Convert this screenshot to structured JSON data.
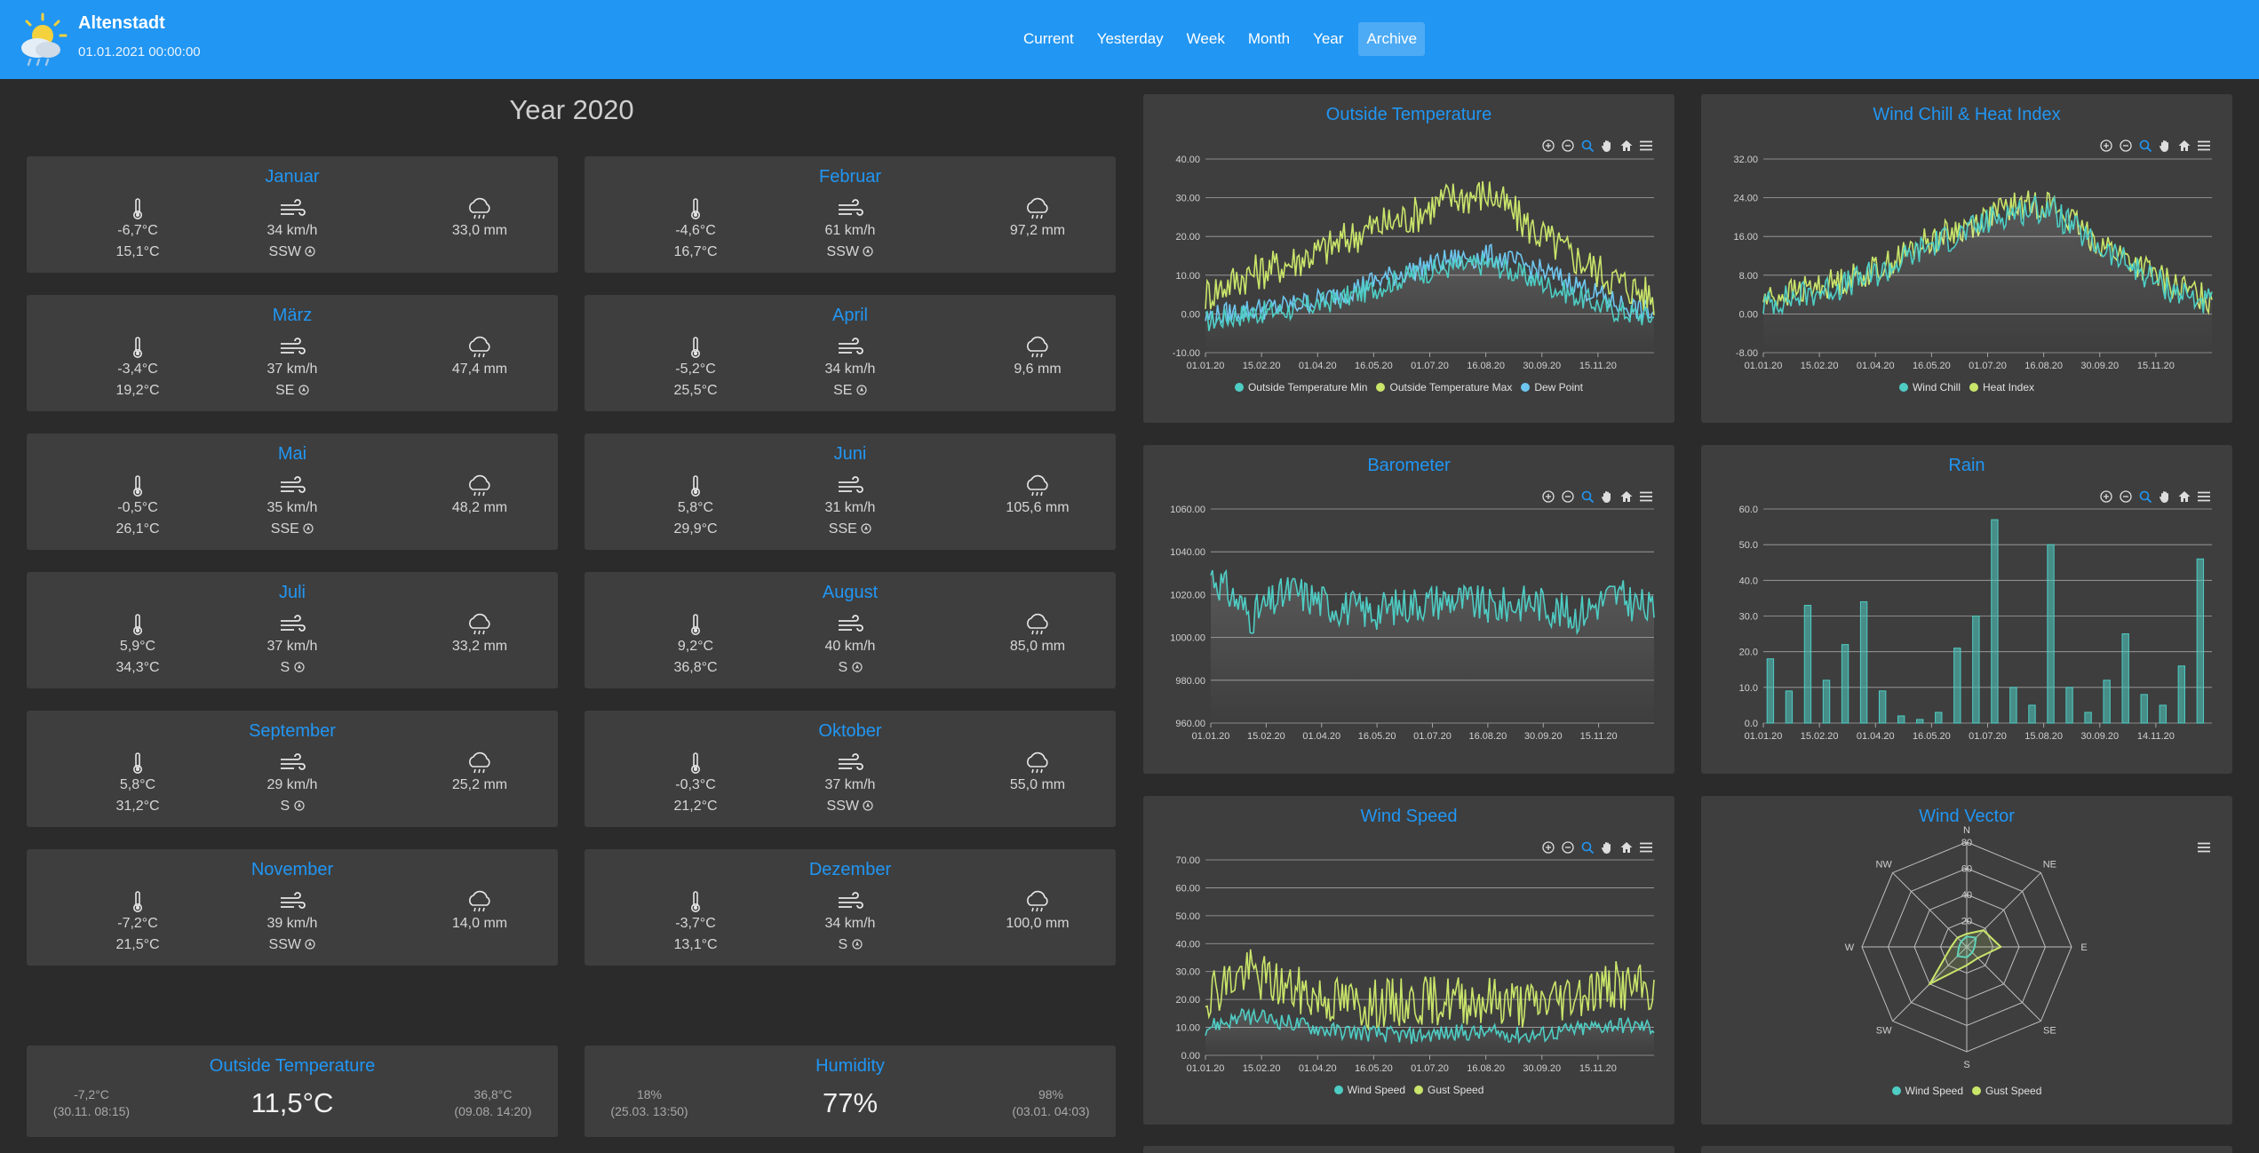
{
  "header": {
    "station": "Altenstadt",
    "datetime": "01.01.2021 00:00:00",
    "nav": [
      "Current",
      "Yesterday",
      "Week",
      "Month",
      "Year",
      "Archive"
    ],
    "active_nav": "Archive"
  },
  "page_title": "Year 2020",
  "months": [
    {
      "name": "Januar",
      "temp_min": "-6,7°C",
      "temp_max": "15,1°C",
      "wind": "34 km/h",
      "wind_dir": "SSW",
      "rain": "33,0 mm"
    },
    {
      "name": "Februar",
      "temp_min": "-4,6°C",
      "temp_max": "16,7°C",
      "wind": "61 km/h",
      "wind_dir": "SSW",
      "rain": "97,2 mm"
    },
    {
      "name": "März",
      "temp_min": "-3,4°C",
      "temp_max": "19,2°C",
      "wind": "37 km/h",
      "wind_dir": "SE",
      "rain": "47,4 mm"
    },
    {
      "name": "April",
      "temp_min": "-5,2°C",
      "temp_max": "25,5°C",
      "wind": "34 km/h",
      "wind_dir": "SE",
      "rain": "9,6 mm"
    },
    {
      "name": "Mai",
      "temp_min": "-0,5°C",
      "temp_max": "26,1°C",
      "wind": "35 km/h",
      "wind_dir": "SSE",
      "rain": "48,2 mm"
    },
    {
      "name": "Juni",
      "temp_min": "5,8°C",
      "temp_max": "29,9°C",
      "wind": "31 km/h",
      "wind_dir": "SSE",
      "rain": "105,6 mm"
    },
    {
      "name": "Juli",
      "temp_min": "5,9°C",
      "temp_max": "34,3°C",
      "wind": "37 km/h",
      "wind_dir": "S",
      "rain": "33,2 mm"
    },
    {
      "name": "August",
      "temp_min": "9,2°C",
      "temp_max": "36,8°C",
      "wind": "40 km/h",
      "wind_dir": "S",
      "rain": "85,0 mm"
    },
    {
      "name": "September",
      "temp_min": "5,8°C",
      "temp_max": "31,2°C",
      "wind": "29 km/h",
      "wind_dir": "S",
      "rain": "25,2 mm"
    },
    {
      "name": "Oktober",
      "temp_min": "-0,3°C",
      "temp_max": "21,2°C",
      "wind": "37 km/h",
      "wind_dir": "SSW",
      "rain": "55,0 mm"
    },
    {
      "name": "November",
      "temp_min": "-7,2°C",
      "temp_max": "21,5°C",
      "wind": "39 km/h",
      "wind_dir": "SSW",
      "rain": "14,0 mm"
    },
    {
      "name": "Dezember",
      "temp_min": "-3,7°C",
      "temp_max": "13,1°C",
      "wind": "34 km/h",
      "wind_dir": "S",
      "rain": "100,0 mm"
    }
  ],
  "stats": {
    "outside_temp": {
      "title": "Outside Temperature",
      "value": "11,5°C",
      "min": "-7,2°C",
      "min_time": "(30.11. 08:15)",
      "max": "36,8°C",
      "max_time": "(09.08. 14:20)"
    },
    "humidity": {
      "title": "Humidity",
      "value": "77%",
      "min": "18%",
      "min_time": "(25.03. 13:50)",
      "max": "98%",
      "max_time": "(03.01. 04:03)"
    }
  },
  "colors": {
    "accent": "#2196f3",
    "teal": "#4ecdc4",
    "lime": "#c9e56a",
    "lightblue": "#6ec6f0"
  },
  "chart_data": [
    {
      "id": "outside_temperature",
      "type": "line",
      "title": "Outside Temperature",
      "x_labels": [
        "01.01.20",
        "15.02.20",
        "01.04.20",
        "16.05.20",
        "01.07.20",
        "16.08.20",
        "30.09.20",
        "15.11.20"
      ],
      "y_ticks": [
        "40.00",
        "30.00",
        "20.00",
        "10.00",
        "0.00",
        "-10.00"
      ],
      "ylim": [
        -10,
        40
      ],
      "series": [
        {
          "name": "Outside Temperature Min",
          "color": "#4ecdc4",
          "values": [
            -2,
            0,
            1,
            3,
            6,
            10,
            12,
            13,
            9,
            5,
            1,
            -1
          ]
        },
        {
          "name": "Outside Temperature Max",
          "color": "#c9e56a",
          "values": [
            5,
            10,
            13,
            17,
            22,
            25,
            30,
            31,
            22,
            15,
            9,
            4
          ]
        },
        {
          "name": "Dew Point",
          "color": "#6ec6f0",
          "values": [
            -1,
            1,
            2,
            4,
            8,
            11,
            14,
            15,
            12,
            8,
            3,
            0
          ]
        }
      ]
    },
    {
      "id": "wind_chill_heat_index",
      "type": "line",
      "title": "Wind Chill & Heat Index",
      "x_labels": [
        "01.01.20",
        "15.02.20",
        "01.04.20",
        "16.05.20",
        "01.07.20",
        "16.08.20",
        "30.09.20",
        "15.11.20"
      ],
      "y_ticks": [
        "32.00",
        "24.00",
        "16.00",
        "8.00",
        "0.00",
        "-8.00"
      ],
      "ylim": [
        -8,
        32
      ],
      "series": [
        {
          "name": "Wind Chill",
          "color": "#4ecdc4",
          "values": [
            2,
            4,
            6,
            9,
            14,
            17,
            21,
            22,
            15,
            10,
            5,
            2
          ]
        },
        {
          "name": "Heat Index",
          "color": "#c9e56a",
          "values": [
            3,
            5,
            7,
            10,
            15,
            18,
            22,
            23,
            16,
            11,
            6,
            3
          ]
        }
      ]
    },
    {
      "id": "barometer",
      "type": "line",
      "title": "Barometer",
      "x_labels": [
        "01.01.20",
        "15.02.20",
        "01.04.20",
        "16.05.20",
        "01.07.20",
        "16.08.20",
        "30.09.20",
        "15.11.20"
      ],
      "y_ticks": [
        "1060.00",
        "1040.00",
        "1020.00",
        "1000.00",
        "980.00",
        "960.00"
      ],
      "ylim": [
        960,
        1060
      ],
      "series": [
        {
          "name": "Barometer",
          "color": "#4ecdc4",
          "values": [
            1030,
            1010,
            1022,
            1015,
            1012,
            1016,
            1018,
            1014,
            1017,
            1010,
            1020,
            1012
          ]
        }
      ]
    },
    {
      "id": "rain",
      "type": "bar",
      "title": "Rain",
      "x_labels": [
        "01.01.20",
        "15.02.20",
        "01.04.20",
        "16.05.20",
        "01.07.20",
        "15.08.20",
        "30.09.20",
        "14.11.20"
      ],
      "y_ticks": [
        "60.0",
        "50.0",
        "40.0",
        "30.0",
        "20.0",
        "10.0",
        "0.0"
      ],
      "ylim": [
        0,
        60
      ],
      "series": [
        {
          "name": "Rain",
          "color": "#4ecdc4",
          "values": [
            18,
            9,
            33,
            12,
            22,
            34,
            9,
            2,
            1,
            3,
            21,
            30,
            57,
            10,
            5,
            50,
            10,
            3,
            12,
            25,
            8,
            5,
            16,
            46
          ]
        }
      ]
    },
    {
      "id": "wind_speed",
      "type": "line",
      "title": "Wind Speed",
      "x_labels": [
        "01.01.20",
        "15.02.20",
        "01.04.20",
        "16.05.20",
        "01.07.20",
        "16.08.20",
        "30.09.20",
        "15.11.20"
      ],
      "y_ticks": [
        "70.00",
        "60.00",
        "50.00",
        "40.00",
        "30.00",
        "20.00",
        "10.00",
        "0.00"
      ],
      "ylim": [
        0,
        70
      ],
      "series": [
        {
          "name": "Wind Speed",
          "color": "#4ecdc4",
          "values": [
            10,
            14,
            12,
            9,
            8,
            7,
            8,
            8,
            7,
            9,
            11,
            10
          ]
        },
        {
          "name": "Gust Speed",
          "color": "#c9e56a",
          "values": [
            22,
            30,
            24,
            20,
            18,
            19,
            20,
            20,
            18,
            22,
            25,
            23
          ]
        }
      ]
    },
    {
      "id": "wind_vector",
      "type": "radar",
      "title": "Wind Vector",
      "directions": [
        "N",
        "NE",
        "E",
        "SE",
        "S",
        "SW",
        "W",
        "NW"
      ],
      "rings": [
        "80",
        "60",
        "40",
        "20"
      ],
      "series": [
        {
          "name": "Wind Speed",
          "color": "#4ecdc4",
          "values": [
            8,
            10,
            6,
            6,
            8,
            10,
            6,
            6
          ]
        },
        {
          "name": "Gust Speed",
          "color": "#c9e56a",
          "values": [
            10,
            18,
            26,
            12,
            14,
            40,
            12,
            10
          ]
        }
      ]
    }
  ]
}
